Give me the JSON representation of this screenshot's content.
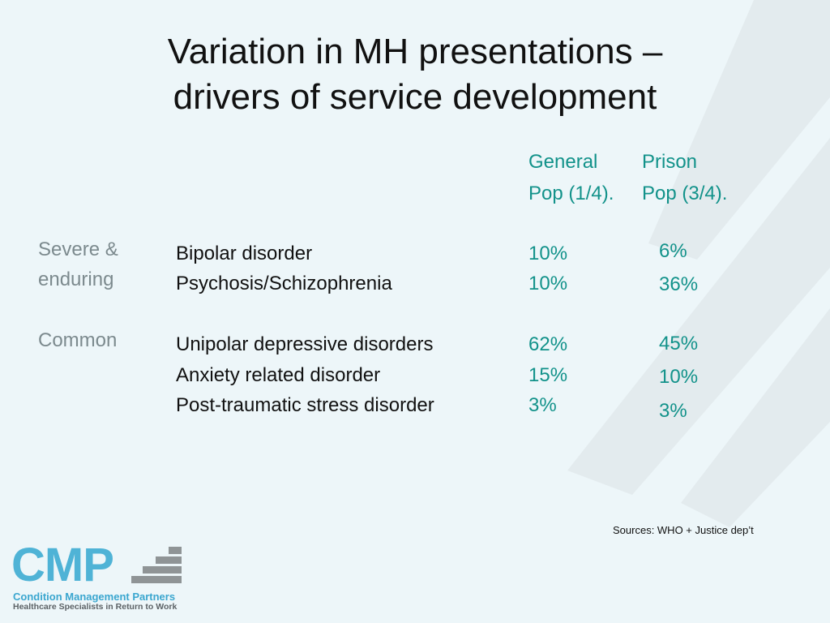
{
  "slide": {
    "title_line1": "Variation in MH presentations –",
    "title_line2": "drivers of service development"
  },
  "columns": {
    "general_line1": "General",
    "general_line2": "Pop (1/4).",
    "prison_line1": "Prison",
    "prison_line2": "Pop (3/4)."
  },
  "groups": [
    {
      "label_line1": "Severe &",
      "label_line2": "enduring"
    },
    {
      "label_line1": "Common"
    }
  ],
  "rows": [
    {
      "condition": "Bipolar disorder",
      "general": "10%",
      "prison": "6%"
    },
    {
      "condition": "Psychosis/Schizophrenia",
      "general": "10%",
      "prison": "36%"
    },
    {
      "condition": "Unipolar depressive disorders",
      "general": "62%",
      "prison": "45%"
    },
    {
      "condition": "Anxiety related disorder",
      "general": "15%",
      "prison": "10%"
    },
    {
      "condition": "Post-traumatic stress disorder",
      "general": "3%",
      "prison": "3%"
    }
  ],
  "sources": "Sources: WHO + Justice dep’t",
  "logo": {
    "mark": "CMP",
    "name": "Condition Management Partners",
    "tagline": "Healthcare Specialists in Return to Work"
  },
  "colors": {
    "background": "#edf6f9",
    "accent": "#12928a",
    "label_grey": "#7c8a8e",
    "logo_blue": "#4fb3d6"
  }
}
